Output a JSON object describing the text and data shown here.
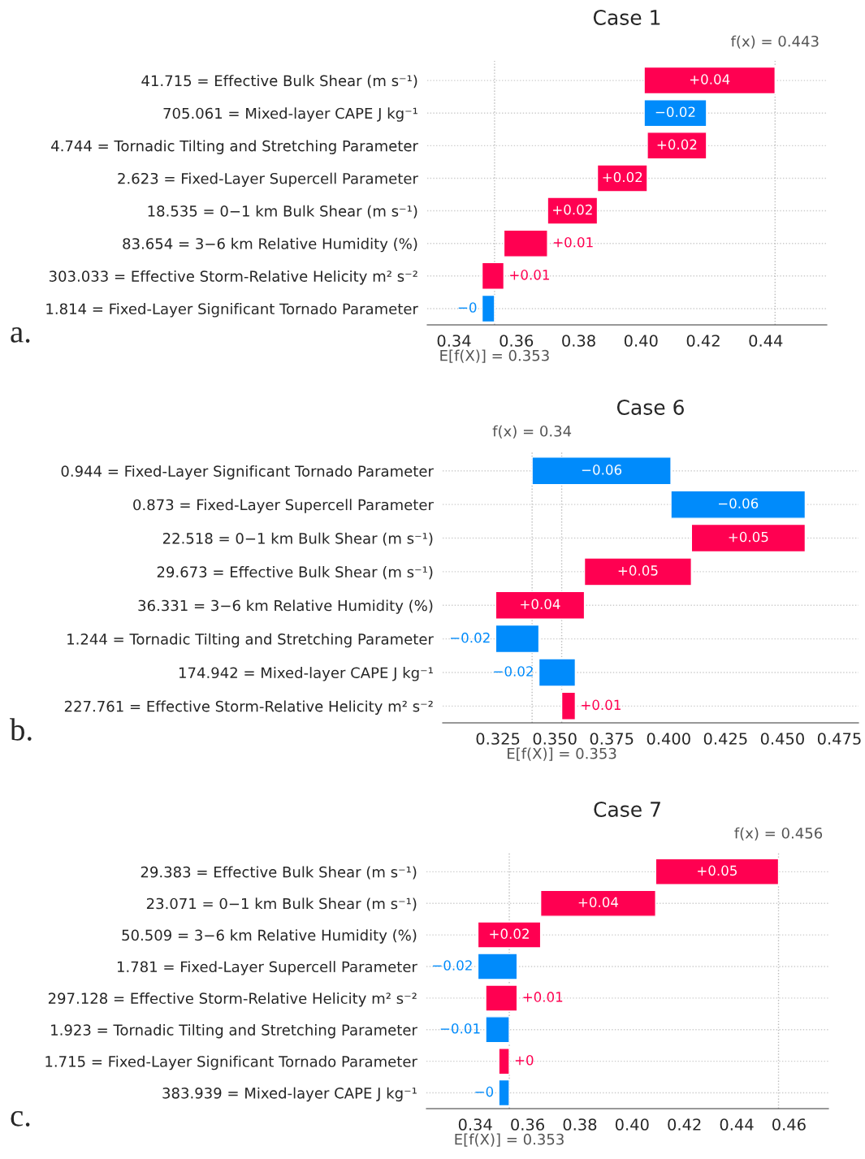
{
  "chart_data": [
    {
      "type": "bar",
      "orientation": "horizontal",
      "title": "Case 1",
      "annotations": [
        "a."
      ],
      "categories": [
        "41.715 = Effective Bulk Shear (m s⁻¹)",
        "705.061 = Mixed-layer CAPE J kg⁻¹",
        "4.744 = Tornadic Tilting and Stretching Parameter",
        "2.623 = Fixed-Layer Supercell Parameter",
        "18.535 = 0−1 km Bulk Shear (m s⁻¹)",
        "83.654 = 3−6 km Relative Humidity (%)",
        "303.033 = Effective Storm-Relative Helicity m² s⁻²",
        "1.814 = Fixed-Layer Significant Tornado Parameter"
      ],
      "base": [
        0.401,
        0.421,
        0.402,
        0.386,
        0.37,
        0.356,
        0.349,
        0.353
      ],
      "values": [
        0.042,
        -0.02,
        0.019,
        0.016,
        0.016,
        0.014,
        0.007,
        -0.004
      ],
      "value_labels": [
        "+0.04",
        "−0.02",
        "+0.02",
        "+0.02",
        "+0.02",
        "+0.01",
        "+0.01",
        "−0"
      ],
      "colors": [
        "#ff0051",
        "#008bfb",
        "#ff0051",
        "#ff0051",
        "#ff0051",
        "#ff0051",
        "#ff0051",
        "#008bfb"
      ],
      "xlim": [
        0.3314,
        0.4596
      ],
      "xticks": [
        0.34,
        0.36,
        0.38,
        {
          "value": 0.4,
          "label": "0.40"
        },
        0.42,
        0.44
      ],
      "grid": "y",
      "ref_lines": [
        {
          "axis": "x",
          "value": 0.353,
          "label": "E[f(X)] = 0.353",
          "color": "#bbbbbb",
          "line_style": "dotted"
        },
        {
          "axis": "x",
          "value": 0.443,
          "label": "f(x) = 0.443",
          "color": "#bbbbbb",
          "line_style": "dotted"
        }
      ]
    },
    {
      "type": "bar",
      "orientation": "horizontal",
      "title": "Case 6",
      "annotations": [
        "b."
      ],
      "categories": [
        "0.944 = Fixed-Layer Significant Tornado Parameter",
        "0.873 = Fixed-Layer Supercell Parameter",
        "22.518 = 0−1 km Bulk Shear (m s⁻¹)",
        "29.673 = Effective Bulk Shear (m s⁻¹)",
        "36.331 = 3−6 km Relative Humidity (%)",
        "1.244 = Tornadic Tilting and Stretching Parameter",
        "174.942 = Mixed-layer CAPE J kg⁻¹",
        "227.761 = Effective Storm-Relative Helicity m² s⁻²"
      ],
      "base": [
        0.401,
        0.46,
        0.41,
        0.363,
        0.324,
        0.343,
        0.359,
        0.353
      ],
      "values": [
        -0.061,
        -0.059,
        0.05,
        0.047,
        0.039,
        -0.019,
        -0.016,
        0.006
      ],
      "value_labels": [
        "−0.06",
        "−0.06",
        "+0.05",
        "+0.05",
        "+0.04",
        "−0.02",
        "−0.02",
        "+0.01"
      ],
      "colors": [
        "#008bfb",
        "#008bfb",
        "#ff0051",
        "#ff0051",
        "#ff0051",
        "#008bfb",
        "#008bfb",
        "#ff0051"
      ],
      "xlim": [
        0.3007,
        0.4834
      ],
      "xticks": [
        0.325,
        {
          "value": 0.35,
          "label": "0.350"
        },
        0.375,
        {
          "value": 0.4,
          "label": "0.400"
        },
        0.425,
        {
          "value": 0.45,
          "label": "0.450"
        },
        0.475
      ],
      "grid": "y",
      "ref_lines": [
        {
          "axis": "x",
          "value": 0.353,
          "label": "E[f(X)] = 0.353",
          "color": "#bbbbbb",
          "line_style": "dotted"
        },
        {
          "axis": "x",
          "value": 0.34,
          "label": "f(x) = 0.34",
          "color": "#bbbbbb",
          "line_style": "dotted"
        }
      ]
    },
    {
      "type": "bar",
      "orientation": "horizontal",
      "title": "Case 7",
      "annotations": [
        "c."
      ],
      "categories": [
        "29.383 = Effective Bulk Shear (m s⁻¹)",
        "23.071 = 0−1 km Bulk Shear (m s⁻¹)",
        "50.509 = 3−6 km Relative Humidity (%)",
        "1.781 = Fixed-Layer Supercell Parameter",
        "297.128 = Effective Storm-Relative Helicity m² s⁻²",
        "1.923 = Tornadic Tilting and Stretching Parameter",
        "1.715 = Fixed-Layer Significant Tornado Parameter",
        "383.939 = Mixed-layer CAPE J kg⁻¹"
      ],
      "base": [
        0.409,
        0.365,
        0.341,
        0.356,
        0.344,
        0.353,
        0.349,
        0.353
      ],
      "values": [
        0.047,
        0.044,
        0.024,
        -0.015,
        0.012,
        -0.009,
        0.004,
        -0.004
      ],
      "value_labels": [
        "+0.05",
        "+0.04",
        "+0.02",
        "−0.02",
        "+0.01",
        "−0.01",
        "+0",
        "−0"
      ],
      "colors": [
        "#ff0051",
        "#ff0051",
        "#ff0051",
        "#008bfb",
        "#ff0051",
        "#008bfb",
        "#ff0051",
        "#008bfb"
      ],
      "xlim": [
        0.3213,
        0.4751
      ],
      "xticks": [
        0.34,
        0.36,
        0.38,
        {
          "value": 0.4,
          "label": "0.40"
        },
        0.42,
        0.44,
        0.46
      ],
      "grid": "y",
      "ref_lines": [
        {
          "axis": "x",
          "value": 0.353,
          "label": "E[f(X)] = 0.353",
          "color": "#bbbbbb",
          "line_style": "dotted"
        },
        {
          "axis": "x",
          "value": 0.456,
          "label": "f(x) = 0.456",
          "color": "#bbbbbb",
          "line_style": "dotted"
        }
      ]
    }
  ]
}
